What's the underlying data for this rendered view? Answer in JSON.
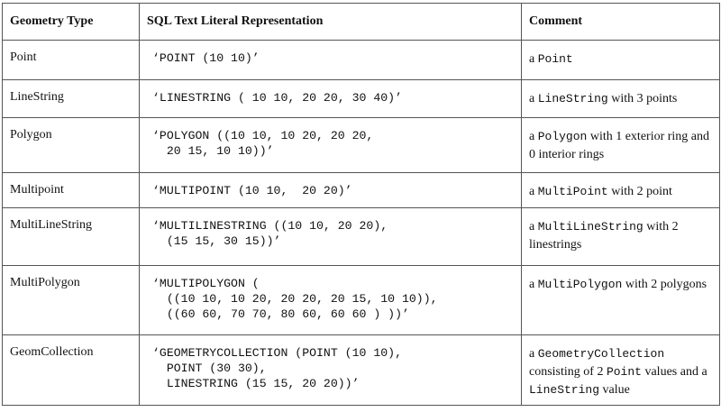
{
  "headers": [
    "Geometry Type",
    "SQL Text Literal Representation",
    "Comment"
  ],
  "rows": [
    {
      "type": "Point",
      "sql": [
        "‘POINT (10 10)’"
      ],
      "comment": [
        {
          "t": "a "
        },
        {
          "t": "Point",
          "code": true
        }
      ]
    },
    {
      "type": "LineString",
      "sql": [
        "‘LINESTRING ( 10 10, 20 20, 30 40)’"
      ],
      "comment": [
        {
          "t": "a "
        },
        {
          "t": "LineString",
          "code": true
        },
        {
          "t": " with 3 points"
        }
      ]
    },
    {
      "type": "Polygon",
      "sql": [
        "‘POLYGON ((10 10, 10 20, 20 20,",
        "  20 15, 10 10))’"
      ],
      "comment": [
        {
          "t": "a "
        },
        {
          "t": "Polygon",
          "code": true
        },
        {
          "t": " with 1 exterior ring and 0 interior rings"
        }
      ]
    },
    {
      "type": "Multipoint",
      "sql": [
        "‘MULTIPOINT (10 10,  20 20)’"
      ],
      "comment": [
        {
          "t": "a "
        },
        {
          "t": "MultiPoint",
          "code": true
        },
        {
          "t": " with 2 point"
        }
      ]
    },
    {
      "type": "MultiLineString",
      "sql": [
        "‘MULTILINESTRING ((10 10, 20 20),",
        "  (15 15, 30 15))’"
      ],
      "comment": [
        {
          "t": "a "
        },
        {
          "t": "MultiLineString",
          "code": true
        },
        {
          "t": " with 2 linestrings"
        }
      ]
    },
    {
      "type": "MultiPolygon",
      "sql": [
        "‘MULTIPOLYGON (",
        "  ((10 10, 10 20, 20 20, 20 15, 10 10)),",
        "  ((60 60, 70 70, 80 60, 60 60 ) ))’"
      ],
      "comment": [
        {
          "t": "a "
        },
        {
          "t": "MultiPolygon",
          "code": true
        },
        {
          "t": " with 2 polygons"
        }
      ]
    },
    {
      "type": "GeomCollection",
      "sql": [
        "‘GEOMETRYCOLLECTION (POINT (10 10),",
        "  POINT (30 30),",
        "  LINESTRING (15 15, 20 20))’"
      ],
      "comment": [
        {
          "t": "a "
        },
        {
          "t": "GeometryCollection",
          "code": true
        },
        {
          "t": " consisting of 2 "
        },
        {
          "t": "Point",
          "code": true
        },
        {
          "t": " values and a "
        },
        {
          "t": "LineString",
          "code": true
        },
        {
          "t": " value"
        }
      ]
    }
  ]
}
